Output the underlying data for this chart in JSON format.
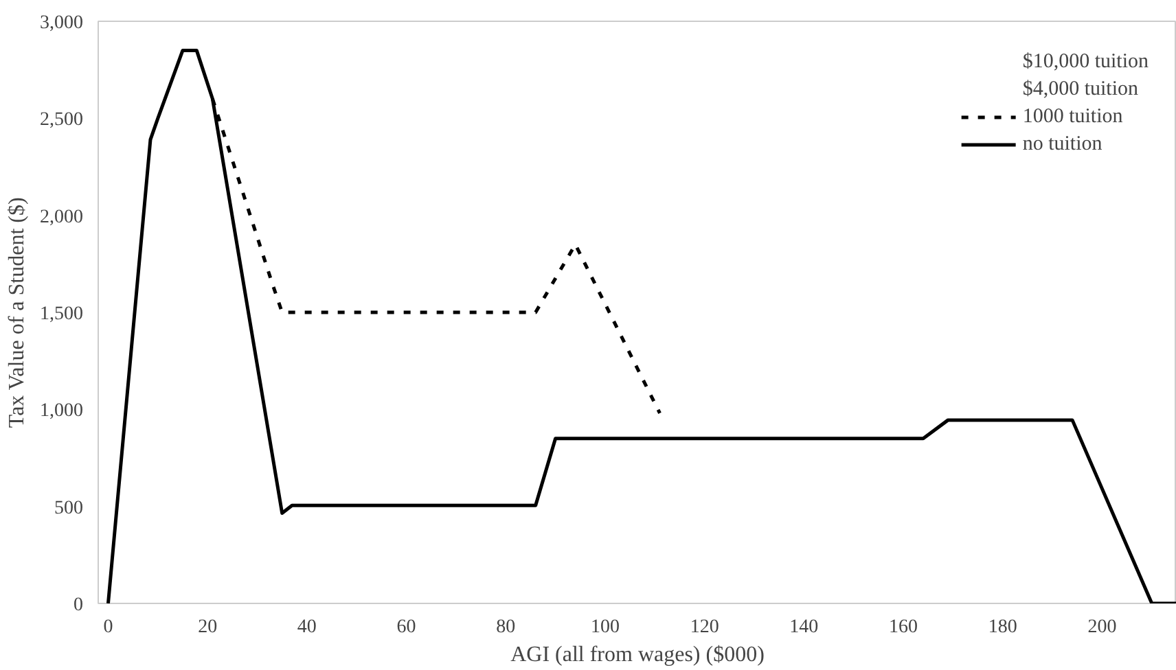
{
  "chart_data": {
    "type": "line",
    "xlabel": "AGI (all from wages) ($000)",
    "ylabel": "Tax Value of a Student ($)",
    "xlim": [
      -2,
      215
    ],
    "ylim": [
      0,
      3000
    ],
    "xticks": [
      0,
      20,
      40,
      60,
      80,
      100,
      120,
      140,
      160,
      180,
      200
    ],
    "yticks": [
      {
        "value": 0,
        "label": "0"
      },
      {
        "value": 500,
        "label": "500"
      },
      {
        "value": 1000,
        "label": "1,000"
      },
      {
        "value": 1500,
        "label": "1,500"
      },
      {
        "value": 2000,
        "label": "2,000"
      },
      {
        "value": 2500,
        "label": "2,500"
      },
      {
        "value": 3000,
        "label": "3,000"
      }
    ],
    "grid": false,
    "legend": "top right",
    "annotations": [
      "$10,000 tuition",
      "$4,000 tuition"
    ],
    "series": [
      {
        "name": "1000 tuition",
        "color": "#000000",
        "line_style": "dashed",
        "x": [
          21,
          33,
          35,
          86,
          94,
          111
        ],
        "values": [
          2600,
          1650,
          1500,
          1500,
          1850,
          980
        ]
      },
      {
        "name": "no tuition",
        "color": "#000000",
        "line_style": "solid",
        "x": [
          0,
          8.5,
          10,
          15,
          17.8,
          21,
          35,
          37,
          86,
          90,
          164,
          169,
          194,
          210,
          215
        ],
        "values": [
          0,
          2390,
          2500,
          2850,
          2850,
          2600,
          465,
          505,
          505,
          850,
          850,
          945,
          945,
          0,
          0
        ]
      }
    ]
  }
}
